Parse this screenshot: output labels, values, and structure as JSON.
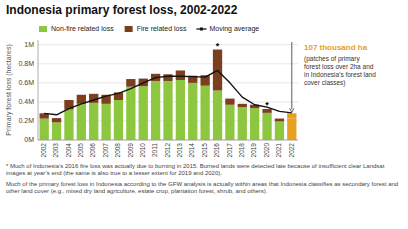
{
  "chart_data": {
    "type": "bar",
    "title": "Indonesia primary forest loss, 2002-2022",
    "stacked": true,
    "grid": true,
    "legend": "top",
    "y_label": "Primary forest loss (hectares)",
    "categories": [
      "2002",
      "2003",
      "2004",
      "2005",
      "2006",
      "2007",
      "2008",
      "2009",
      "2010",
      "2011",
      "2012",
      "2013",
      "2014",
      "2015",
      "2016",
      "2017",
      "2018",
      "2019",
      "2020",
      "2021",
      "2022"
    ],
    "series": [
      {
        "name": "Non-fire related loss",
        "color": "#8DC63F",
        "colors": [
          "#8DC63F",
          "#8DC63F",
          "#8DC63F",
          "#8DC63F",
          "#8DC63F",
          "#8DC63F",
          "#8DC63F",
          "#8DC63F",
          "#8DC63F",
          "#8DC63F",
          "#8DC63F",
          "#8DC63F",
          "#8DC63F",
          "#8DC63F",
          "#8DC63F",
          "#8DC63F",
          "#8DC63F",
          "#8DC63F",
          "#8DC63F",
          "#8DC63F",
          "#E8A020"
        ],
        "values": [
          0.225,
          0.185,
          0.32,
          0.38,
          0.39,
          0.38,
          0.42,
          0.56,
          0.565,
          0.62,
          0.62,
          0.63,
          0.6,
          0.57,
          0.52,
          0.37,
          0.345,
          0.335,
          0.285,
          0.195,
          0.225
        ]
      },
      {
        "name": "Fire related loss",
        "color": "#7B3F1E",
        "colors": [
          "#7B3F1E",
          "#7B3F1E",
          "#7B3F1E",
          "#7B3F1E",
          "#7B3F1E",
          "#7B3F1E",
          "#7B3F1E",
          "#7B3F1E",
          "#7B3F1E",
          "#7B3F1E",
          "#7B3F1E",
          "#7B3F1E",
          "#7B3F1E",
          "#7B3F1E",
          "#7B3F1E",
          "#7B3F1E",
          "#7B3F1E",
          "#7B3F1E",
          "#7B3F1E",
          "#7B3F1E",
          "#E8A020"
        ],
        "values": [
          0.055,
          0.045,
          0.1,
          0.095,
          0.095,
          0.095,
          0.08,
          0.08,
          0.08,
          0.075,
          0.07,
          0.1,
          0.075,
          0.11,
          0.43,
          0.065,
          0.035,
          0.035,
          0.04,
          0.03,
          0.055
        ]
      },
      {
        "name": "Moving average",
        "type": "line",
        "color": "#111111",
        "values": [
          0.28,
          0.265,
          0.33,
          0.38,
          0.42,
          0.46,
          0.49,
          0.54,
          0.6,
          0.655,
          0.67,
          0.67,
          0.665,
          0.66,
          0.73,
          0.6,
          0.45,
          0.37,
          0.345,
          0.3,
          0.285
        ]
      }
    ],
    "ylim": [
      0,
      1.05
    ],
    "yticks": [
      {
        "value": 0,
        "label": "0M"
      },
      {
        "value": 0.2,
        "label": "0.2M"
      },
      {
        "value": 0.4,
        "label": "0.4M"
      },
      {
        "value": 0.6,
        "label": "0.6M"
      },
      {
        "value": 0.8,
        "label": "0.8M"
      },
      {
        "value": 1.0,
        "label": "1M"
      }
    ],
    "annotations": [
      {
        "text": "*",
        "category": "2016"
      },
      {
        "text": "*",
        "category": "2020"
      },
      {
        "text": "107 thousand ha",
        "category": "2022",
        "color": "#E8A020",
        "arrow": true
      },
      {
        "text": "(patches of primary\nforest loss over 2ha and\nin Indonesia’s forest land\ncover classes)"
      }
    ],
    "footnotes": [
      "* Much of Indonesia’s 2016 fire loss was actually due to burning in 2015. Burned lands were detected late because of insufficient clear Landsat images at year’s end (the same is also true to a lesser extent for 2019 and 2020).",
      "Much of the primary forest loss in Indonesia according to the GFW analysis is actually within areas that Indonesia classifies as secondary forest and other land cover (e.g., mixed dry land agriculture, estate crop, plantation forest, shrub, and others)."
    ]
  }
}
